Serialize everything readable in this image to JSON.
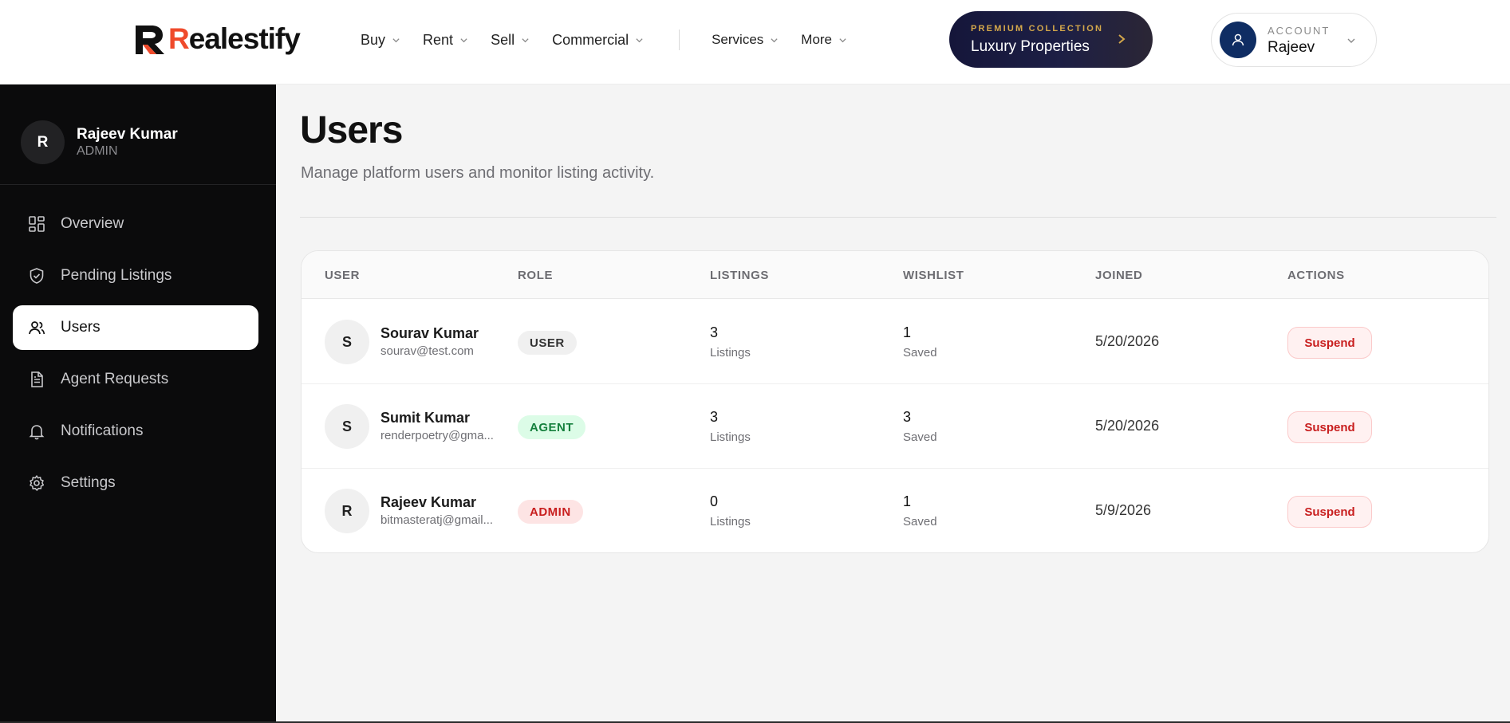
{
  "brand": {
    "name_initial": "R",
    "name_rest": "ealestify",
    "accent_color": "#ef4a2b"
  },
  "nav": {
    "links": [
      {
        "label": "Buy"
      },
      {
        "label": "Rent"
      },
      {
        "label": "Sell"
      },
      {
        "label": "Commercial"
      },
      {
        "label": "Services"
      },
      {
        "label": "More"
      }
    ],
    "premium": {
      "eyebrow": "PREMIUM COLLECTION",
      "title": "Luxury Properties"
    },
    "account": {
      "eyebrow": "ACCOUNT",
      "name": "Rajeev"
    }
  },
  "sidebar": {
    "profile": {
      "initial": "R",
      "name": "Rajeev Kumar",
      "role": "ADMIN"
    },
    "items": [
      {
        "label": "Overview",
        "icon": "dashboard-icon"
      },
      {
        "label": "Pending Listings",
        "icon": "shield-check-icon"
      },
      {
        "label": "Users",
        "icon": "users-icon",
        "active": true
      },
      {
        "label": "Agent Requests",
        "icon": "document-icon"
      },
      {
        "label": "Notifications",
        "icon": "bell-icon"
      },
      {
        "label": "Settings",
        "icon": "gear-icon"
      }
    ]
  },
  "main": {
    "title": "Users",
    "subtitle": "Manage platform users and monitor listing activity.",
    "table": {
      "headers": [
        "USER",
        "ROLE",
        "LISTINGS",
        "WISHLIST",
        "JOINED",
        "ACTIONS"
      ],
      "rows": [
        {
          "initial": "S",
          "name": "Sourav Kumar",
          "email": "sourav@test.com",
          "role": "USER",
          "listings": "3",
          "listings_label": "Listings",
          "wishlist": "1",
          "wishlist_label": "Saved",
          "joined": "5/20/2026",
          "action": "Suspend"
        },
        {
          "initial": "S",
          "name": "Sumit Kumar",
          "email": "renderpoetry@gma...",
          "role": "AGENT",
          "listings": "3",
          "listings_label": "Listings",
          "wishlist": "3",
          "wishlist_label": "Saved",
          "joined": "5/20/2026",
          "action": "Suspend"
        },
        {
          "initial": "R",
          "name": "Rajeev Kumar",
          "email": "bitmasteratj@gmail...",
          "role": "ADMIN",
          "listings": "0",
          "listings_label": "Listings",
          "wishlist": "1",
          "wishlist_label": "Saved",
          "joined": "5/9/2026",
          "action": "Suspend"
        }
      ]
    }
  }
}
